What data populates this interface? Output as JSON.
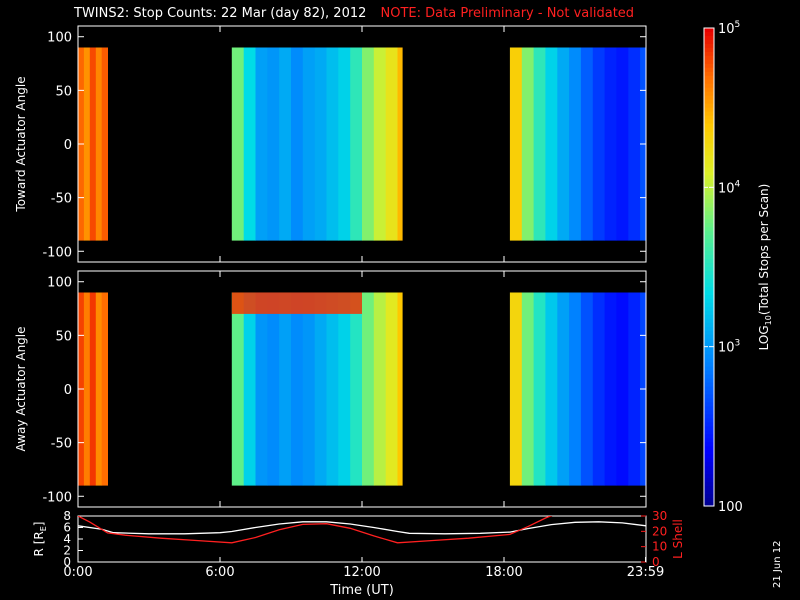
{
  "title": {
    "main": "TWINS2: Stop Counts: 22 Mar (day  82), 2012",
    "note": "NOTE: Data Preliminary - Not validated"
  },
  "date_stamp": "21 Jun 12",
  "colors": {
    "background": "#000000",
    "axes": "#ffffff",
    "note": "#ff2020",
    "l_shell": "#ff2020",
    "radius": "#ffffff"
  },
  "chart_data": [
    {
      "type": "heatmap",
      "panel": "toward",
      "ylabel": "Toward Actuator Angle",
      "yticks": [
        "100",
        "50",
        "0",
        "-50",
        "-100"
      ],
      "ytick_values": [
        100,
        50,
        0,
        -50,
        -100
      ],
      "ylim": [
        -110,
        110
      ],
      "xlim": [
        0,
        24
      ],
      "angle_range": [
        -90,
        90
      ],
      "coverage": [
        [
          0.0,
          1.25
        ],
        [
          6.5,
          13.7
        ],
        [
          18.25,
          24.0
        ]
      ],
      "log_counts_columns": [
        [
          0.0,
          4.72
        ],
        [
          0.25,
          4.58
        ],
        [
          0.5,
          4.8
        ],
        [
          0.75,
          4.62
        ],
        [
          1.0,
          4.75
        ],
        [
          6.5,
          3.8
        ],
        [
          7.0,
          3.35
        ],
        [
          7.5,
          3.05
        ],
        [
          8.0,
          3.0
        ],
        [
          8.5,
          3.1
        ],
        [
          9.0,
          2.95
        ],
        [
          9.5,
          3.05
        ],
        [
          10.0,
          3.1
        ],
        [
          10.5,
          3.2
        ],
        [
          11.0,
          3.3
        ],
        [
          11.5,
          3.55
        ],
        [
          12.0,
          3.85
        ],
        [
          12.5,
          4.05
        ],
        [
          13.0,
          4.2
        ],
        [
          13.5,
          4.45
        ],
        [
          18.25,
          4.35
        ],
        [
          18.75,
          3.85
        ],
        [
          19.25,
          3.55
        ],
        [
          19.75,
          3.3
        ],
        [
          20.25,
          3.1
        ],
        [
          20.75,
          2.95
        ],
        [
          21.25,
          2.75
        ],
        [
          21.75,
          2.6
        ],
        [
          22.25,
          2.5
        ],
        [
          22.75,
          2.45
        ],
        [
          23.25,
          2.55
        ],
        [
          23.75,
          2.7
        ]
      ]
    },
    {
      "type": "heatmap",
      "panel": "away",
      "ylabel": "Away Actuator Angle",
      "yticks": [
        "100",
        "50",
        "0",
        "-50",
        "-100"
      ],
      "ytick_values": [
        100,
        50,
        0,
        -50,
        -100
      ],
      "ylim": [
        -110,
        110
      ],
      "xlim": [
        0,
        24
      ],
      "angle_range": [
        -90,
        90
      ],
      "coverage": [
        [
          0.0,
          1.25
        ],
        [
          6.5,
          13.7
        ],
        [
          18.25,
          24.0
        ]
      ],
      "log_counts_columns": [
        [
          0.0,
          4.82
        ],
        [
          0.25,
          4.65
        ],
        [
          0.5,
          4.85
        ],
        [
          0.75,
          4.6
        ],
        [
          1.0,
          4.7
        ],
        [
          6.5,
          3.75
        ],
        [
          7.0,
          3.3
        ],
        [
          7.5,
          3.0
        ],
        [
          8.0,
          2.95
        ],
        [
          8.5,
          3.05
        ],
        [
          9.0,
          2.95
        ],
        [
          9.5,
          3.0
        ],
        [
          10.0,
          3.1
        ],
        [
          10.5,
          3.2
        ],
        [
          11.0,
          3.3
        ],
        [
          11.5,
          3.5
        ],
        [
          12.0,
          3.8
        ],
        [
          12.5,
          4.0
        ],
        [
          13.0,
          4.15
        ],
        [
          13.5,
          4.4
        ],
        [
          18.25,
          4.3
        ],
        [
          18.75,
          3.8
        ],
        [
          19.25,
          3.5
        ],
        [
          19.75,
          3.25
        ],
        [
          20.25,
          3.05
        ],
        [
          20.75,
          2.9
        ],
        [
          21.25,
          2.7
        ],
        [
          21.75,
          2.55
        ],
        [
          22.25,
          2.45
        ],
        [
          22.75,
          2.4
        ],
        [
          23.25,
          2.5
        ],
        [
          23.75,
          2.65
        ]
      ],
      "high_count_band": {
        "angle_range": [
          70,
          90
        ],
        "time_range": [
          6.5,
          12.0
        ],
        "log_counts": 4.85
      }
    },
    {
      "type": "line",
      "panel": "orbit",
      "xlabel": "Time (UT)",
      "xticks": [
        "0:00",
        "6:00",
        "12:00",
        "18:00",
        "23:59"
      ],
      "xtick_values": [
        0,
        6,
        12,
        18,
        23.98
      ],
      "xlim": [
        0,
        24
      ],
      "left_axis": {
        "label": "R [R",
        "label_sub": "E",
        "label_end": "]",
        "ticks": [
          "8",
          "6",
          "4",
          "2",
          "0"
        ],
        "tick_values": [
          8,
          6,
          4,
          2,
          0
        ],
        "ylim": [
          0,
          8
        ]
      },
      "right_axis": {
        "label": "L Shell",
        "ticks": [
          "30",
          "20",
          "10",
          "0"
        ],
        "tick_values": [
          30,
          20,
          10,
          0
        ],
        "ylim": [
          0,
          30
        ]
      },
      "series": [
        {
          "axis": "left",
          "color": "#ffffff",
          "x": [
            0,
            1,
            1.5,
            3,
            4.5,
            6,
            6.5,
            7.5,
            8.5,
            9.5,
            10.5,
            11.5,
            12.5,
            13.5,
            14,
            15.5,
            17,
            18.25,
            19,
            20,
            21,
            22,
            23,
            24
          ],
          "y": [
            6.3,
            5.7,
            5.1,
            4.9,
            4.9,
            5.1,
            5.3,
            6.0,
            6.6,
            7.0,
            7.0,
            6.6,
            6.0,
            5.3,
            5.0,
            4.9,
            5.0,
            5.2,
            5.8,
            6.5,
            6.9,
            7.0,
            6.8,
            6.3
          ]
        },
        {
          "axis": "right",
          "color": "#ff2020",
          "x": [
            0,
            0.5,
            1.25,
            2,
            3.5,
            5,
            6.5,
            7.5,
            8.5,
            9.5,
            10.5,
            11.5,
            12.5,
            13.5,
            15,
            16.5,
            18.25,
            19,
            19.8,
            20.5
          ],
          "y": [
            30,
            26,
            19,
            17.5,
            15.5,
            14,
            12.5,
            16,
            21,
            24.5,
            25,
            22,
            17,
            12.5,
            14,
            15.5,
            18,
            23,
            29,
            33
          ]
        }
      ]
    }
  ],
  "colorbar": {
    "label_main": "LOG",
    "label_sub": "10",
    "label_rest": "(Total Stops per Scan)",
    "scale": "log",
    "range": [
      100,
      100000
    ],
    "tick_labels": [
      "10^5",
      "10^4",
      "10^3",
      "100"
    ],
    "ticks": [
      {
        "mantissa": "10",
        "exponent": "5",
        "value": 100000
      },
      {
        "mantissa": "10",
        "exponent": "4",
        "value": 10000
      },
      {
        "mantissa": "10",
        "exponent": "3",
        "value": 1000
      },
      {
        "plain": "100",
        "value": 100
      }
    ]
  }
}
